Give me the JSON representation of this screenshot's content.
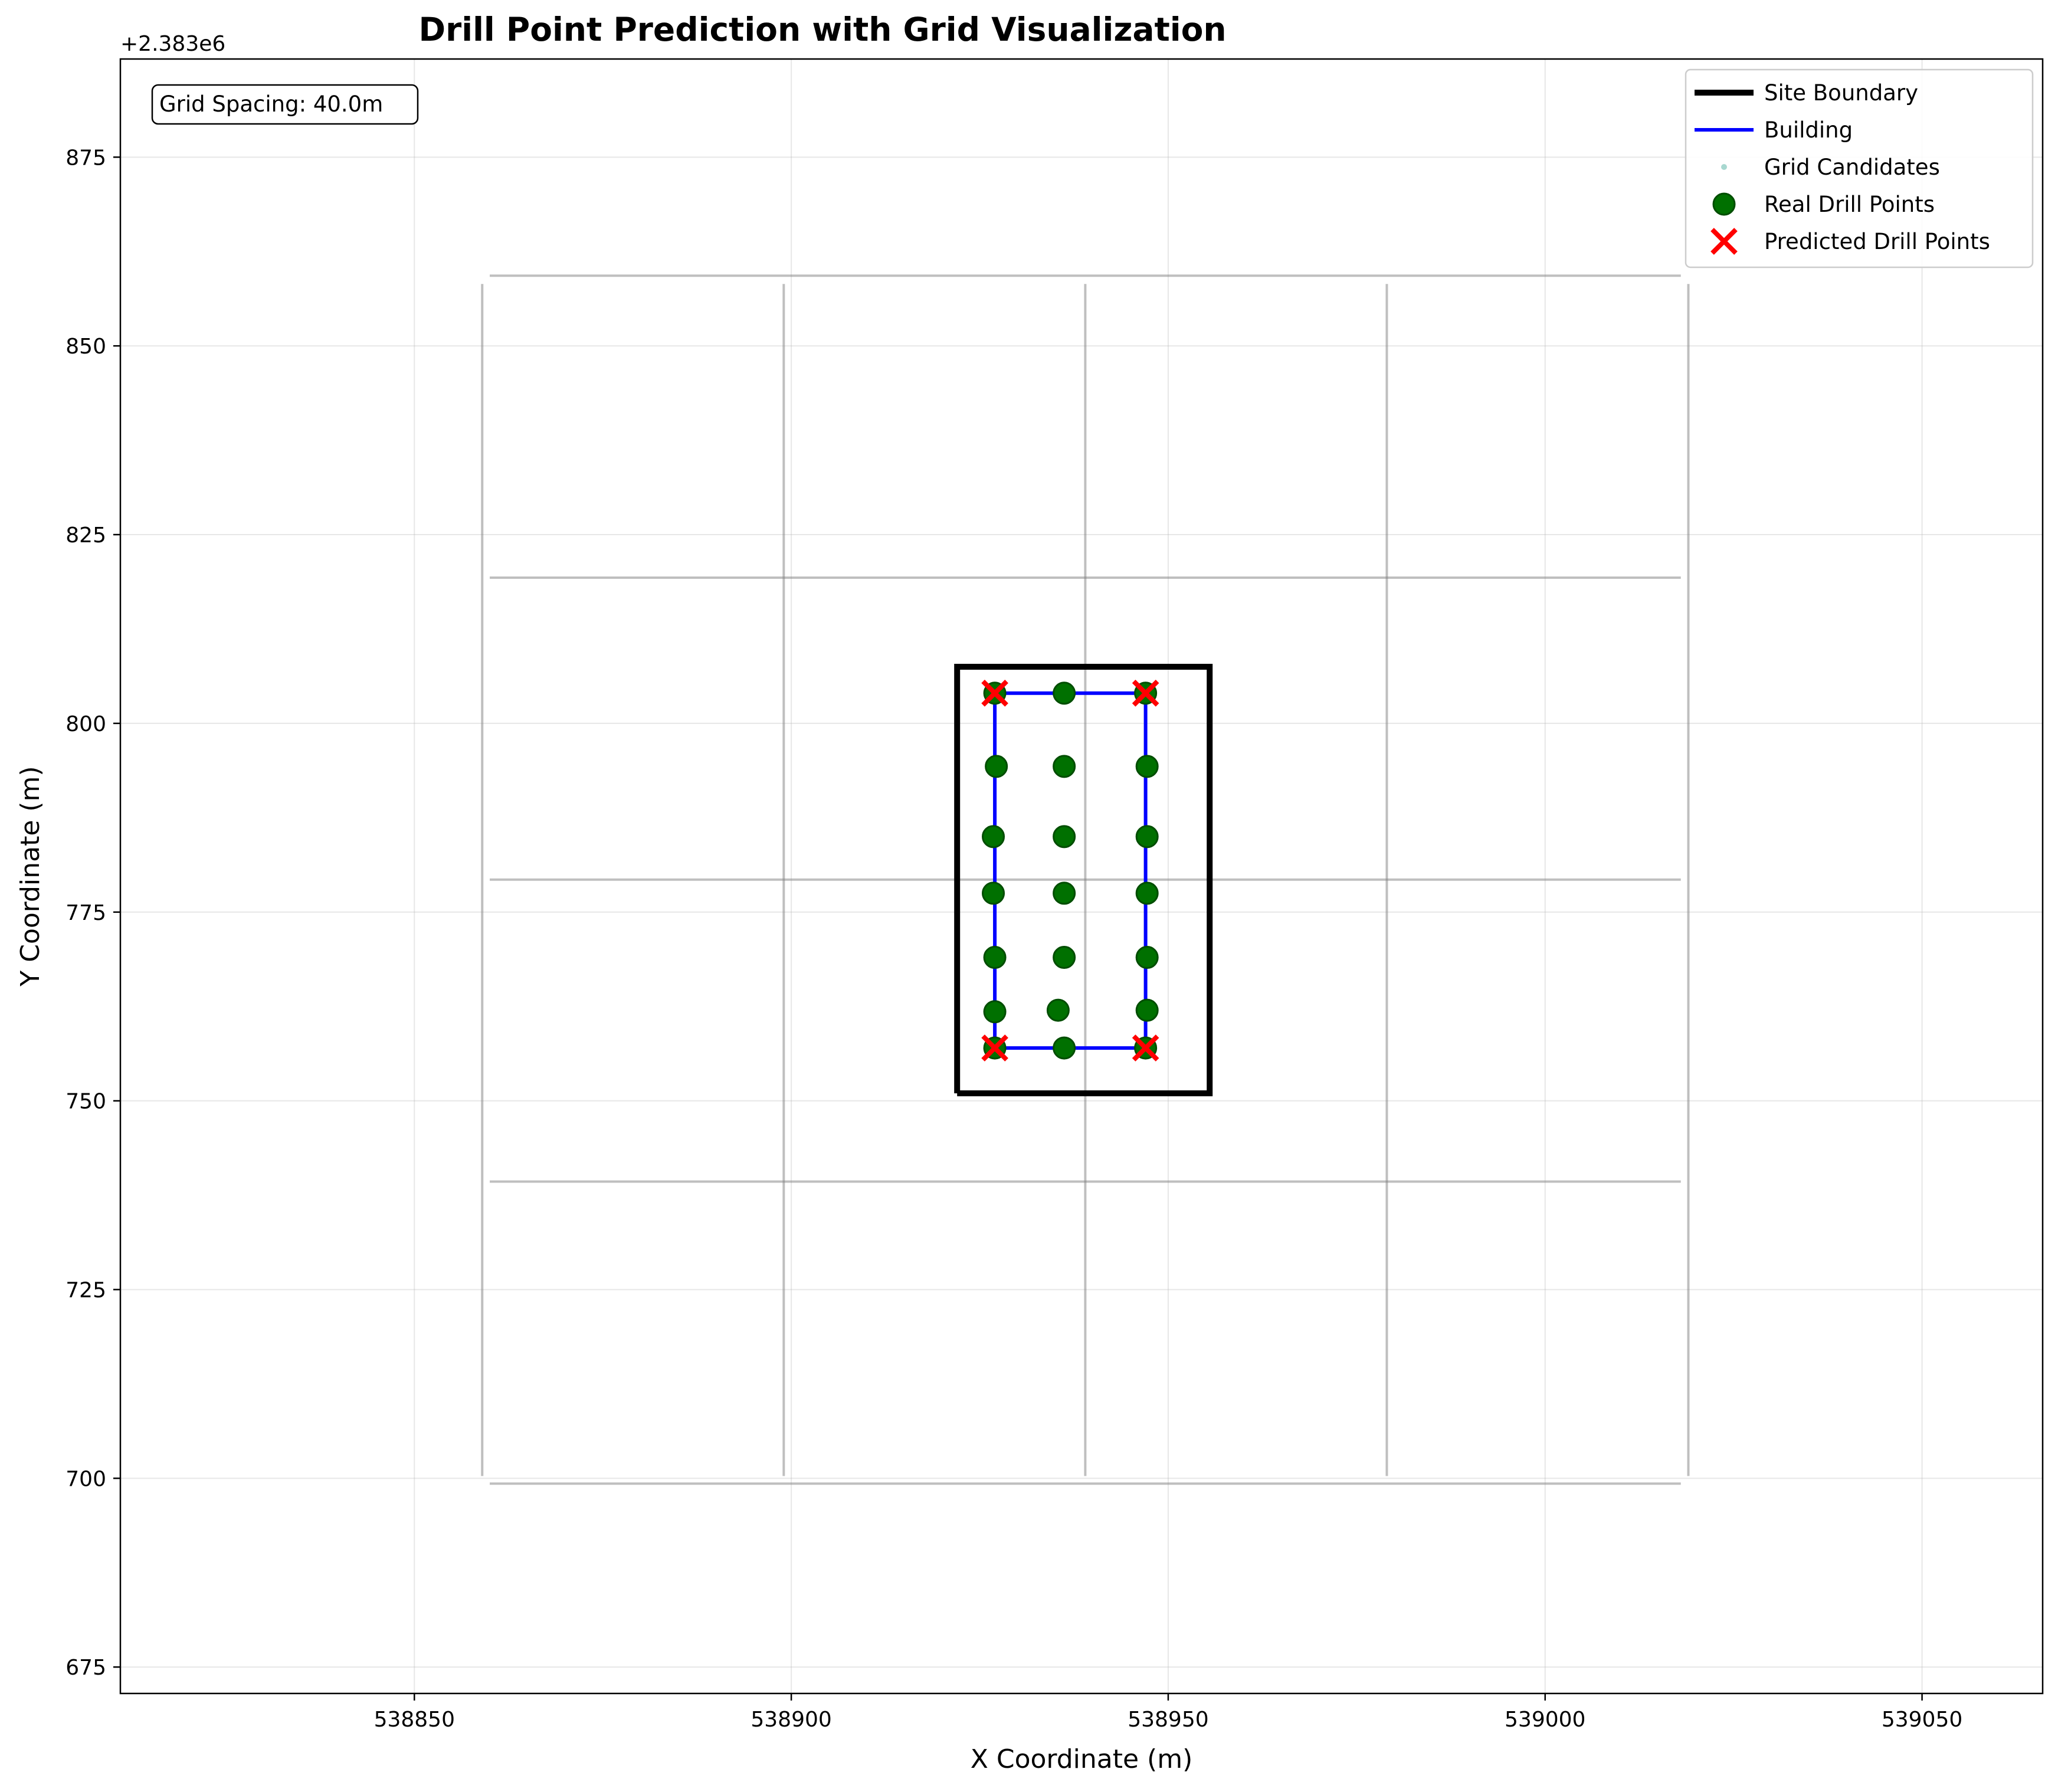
{
  "chart_data": {
    "type": "scatter",
    "title": "Drill Point Prediction with Grid Visualization",
    "xlabel": "X Coordinate (m)",
    "ylabel": "Y Coordinate (m)",
    "y_offset_label": "+2.383e6",
    "xlim": [
      538811,
      539066
    ],
    "ylim": [
      671.5,
      888
    ],
    "x_ticks": [
      538850,
      538900,
      538950,
      539000,
      539050
    ],
    "x_tick_labels": [
      "538850",
      "538900",
      "538950",
      "539000",
      "539050"
    ],
    "y_ticks": [
      675,
      700,
      725,
      750,
      775,
      800,
      825,
      850,
      875
    ],
    "y_tick_labels": [
      "675",
      "700",
      "725",
      "750",
      "775",
      "800",
      "825",
      "850",
      "875"
    ],
    "grid": true,
    "annotation": "Grid Spacing: 40.0m",
    "legend_position": "top-right",
    "legend": [
      {
        "label": "Site Boundary",
        "kind": "line",
        "color": "#000000"
      },
      {
        "label": "Building",
        "kind": "line",
        "color": "#0000ff"
      },
      {
        "label": "Grid Candidates",
        "kind": "dot",
        "color": "#a8d8d0"
      },
      {
        "label": "Real Drill Points",
        "kind": "circle",
        "color": "#007000"
      },
      {
        "label": "Predicted Drill Points",
        "kind": "x",
        "color": "#ff0000"
      }
    ],
    "site_boundary": [
      [
        538922,
        751
      ],
      [
        538955.5,
        751
      ],
      [
        538955.5,
        807.5
      ],
      [
        538922,
        807.5
      ],
      [
        538922,
        751
      ]
    ],
    "building": [
      [
        538927,
        757
      ],
      [
        538947,
        757
      ],
      [
        538947,
        804
      ],
      [
        538927,
        804
      ],
      [
        538927,
        757
      ]
    ],
    "grid_lines": {
      "vertical": [
        {
          "x": 538859,
          "y": [
            700.3,
            858.2
          ]
        },
        {
          "x": 538899,
          "y": [
            700.3,
            858.2
          ]
        },
        {
          "x": 538939,
          "y": [
            700.3,
            858.2
          ]
        },
        {
          "x": 538979,
          "y": [
            700.3,
            858.2
          ]
        },
        {
          "x": 539019,
          "y": [
            700.3,
            858.2
          ]
        }
      ],
      "horizontal": [
        {
          "y": 699.3,
          "x": [
            538860,
            539018
          ]
        },
        {
          "y": 739.3,
          "x": [
            538860,
            539018
          ]
        },
        {
          "y": 779.3,
          "x": [
            538860,
            539018
          ]
        },
        {
          "y": 819.3,
          "x": [
            538860,
            539018
          ]
        },
        {
          "y": 859.3,
          "x": [
            538860,
            539018
          ]
        }
      ]
    },
    "real_drill_points": {
      "x": [
        538927,
        538936.2,
        538947,
        538927.2,
        538936.2,
        538947.2,
        538926.8,
        538936.2,
        538947.2,
        538926.8,
        538936.2,
        538947.2,
        538927,
        538936.2,
        538947.2,
        538927,
        538935.4,
        538947.2,
        538927,
        538936.2,
        538947
      ],
      "y": [
        804,
        804,
        804,
        794.3,
        794.3,
        794.3,
        785,
        785,
        785,
        777.5,
        777.5,
        777.5,
        769,
        769,
        769,
        761.8,
        762,
        762,
        757,
        757,
        757
      ]
    },
    "predicted_drill_points": {
      "x": [
        538927,
        538947,
        538927,
        538947
      ],
      "y": [
        804,
        804,
        757,
        757
      ]
    }
  }
}
